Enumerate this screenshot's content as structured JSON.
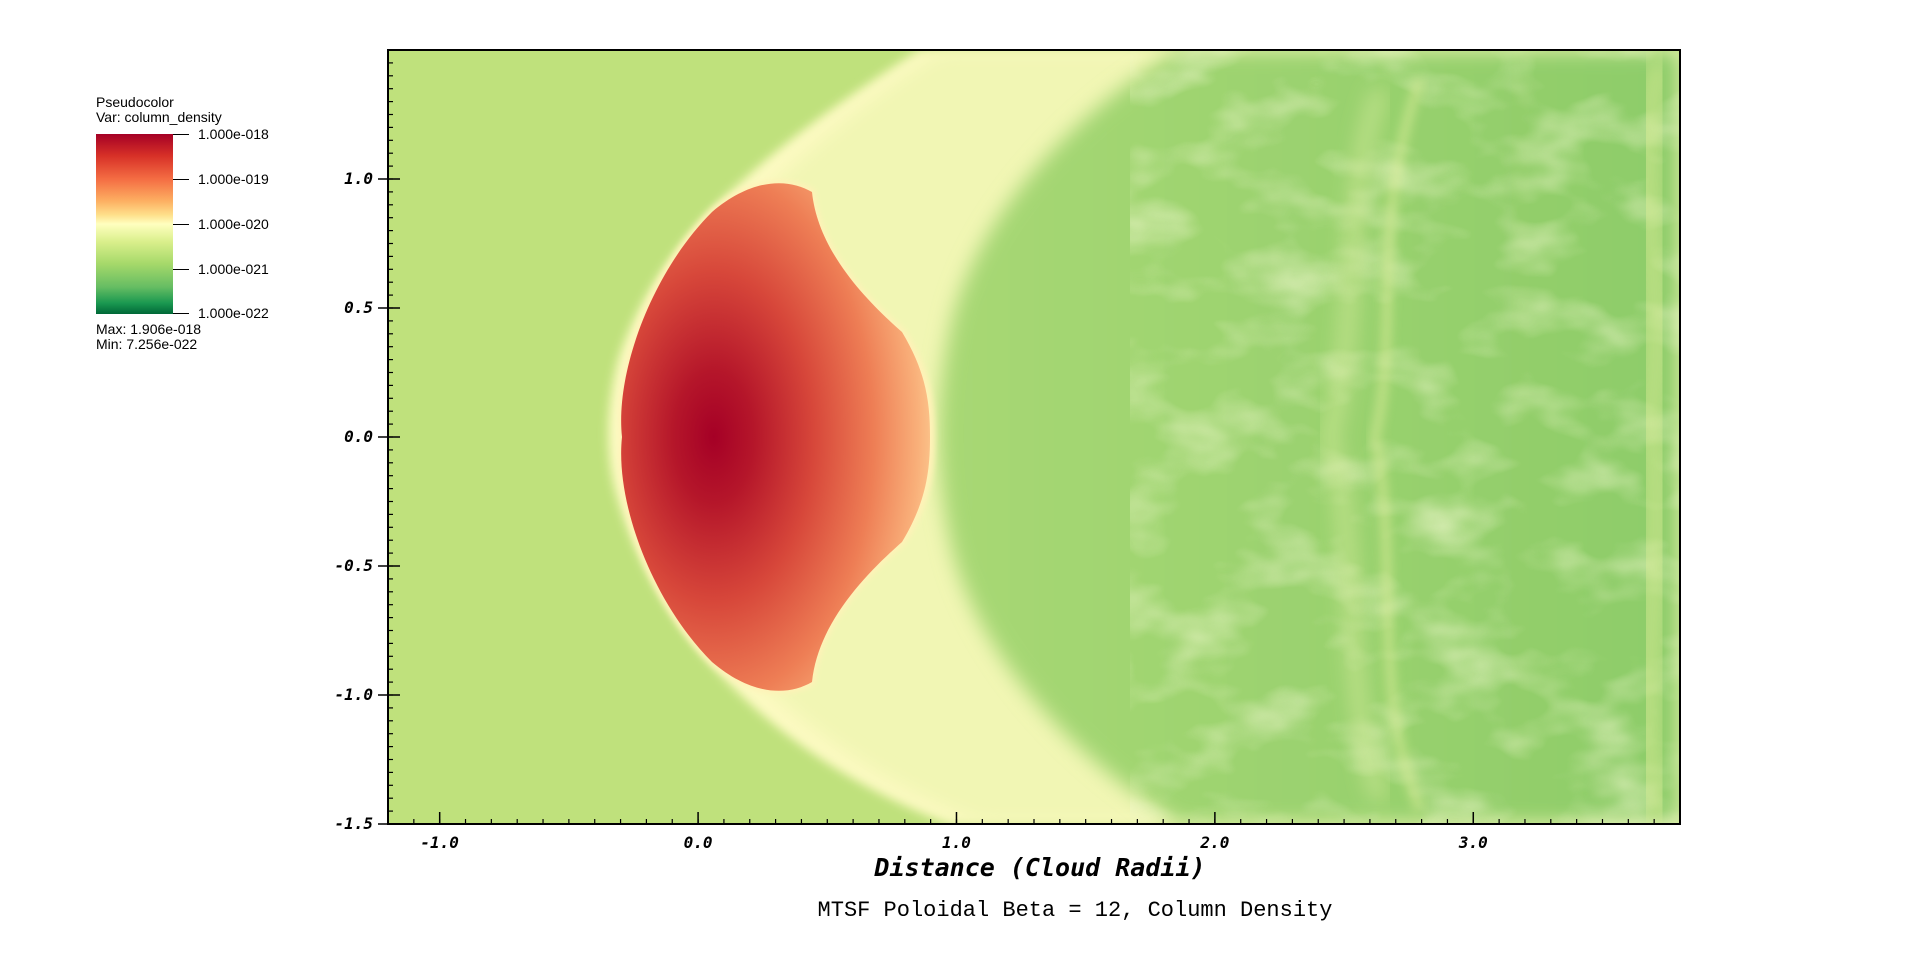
{
  "legend": {
    "title": "Pseudocolor",
    "variable": "Var: column_density",
    "ticks": [
      "1.000e-018",
      "1.000e-019",
      "1.000e-020",
      "1.000e-021",
      "1.000e-022"
    ],
    "max_label": "Max:  1.906e-018",
    "min_label": "Min:  7.256e-022"
  },
  "chart_data": {
    "type": "heatmap",
    "title": "MTSF Poloidal Beta = 12, Column Density",
    "xlabel": "Distance (Cloud Radii)",
    "ylabel": "",
    "xlim": [
      -1.2,
      3.8
    ],
    "ylim": [
      -1.5,
      1.5
    ],
    "x_ticks": [
      {
        "value": -1.0,
        "label": "-1.0"
      },
      {
        "value": 0.0,
        "label": "0.0"
      },
      {
        "value": 1.0,
        "label": "1.0"
      },
      {
        "value": 2.0,
        "label": "2.0"
      },
      {
        "value": 3.0,
        "label": "3.0"
      }
    ],
    "y_ticks": [
      {
        "value": 1.0,
        "label": "1.0"
      },
      {
        "value": 0.5,
        "label": "0.5"
      },
      {
        "value": 0.0,
        "label": "0.0"
      },
      {
        "value": -0.5,
        "label": "-0.5"
      },
      {
        "value": -1.0,
        "label": "-1.0"
      },
      {
        "value": -1.5,
        "label": "-1.5"
      }
    ],
    "colormap": [
      "#a50026",
      "#d73027",
      "#f46d43",
      "#fdae61",
      "#fee08b",
      "#ffffbf",
      "#d9ef8b",
      "#a6d96a",
      "#66bd63",
      "#1a9850",
      "#006837"
    ],
    "colorbar_range": [
      1e-22,
      1e-18
    ],
    "max_value": 1.906e-18,
    "min_value": 7.256e-22
  }
}
